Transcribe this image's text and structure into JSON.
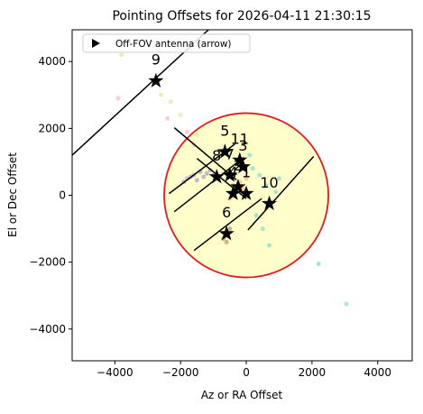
{
  "chart_data": {
    "type": "scatter",
    "title": "Pointing Offsets for 2026-04-11 21:30:15",
    "xlabel": "Az or RA Offset",
    "ylabel": "El or Dec Offset",
    "xlim": [
      -5300,
      5050
    ],
    "ylim": [
      -4950,
      4950
    ],
    "xticks": [
      {
        "value": -4000,
        "label": "−4000"
      },
      {
        "value": -2000,
        "label": "−2000"
      },
      0,
      2000,
      4000
    ],
    "yticks": [
      {
        "value": -4000,
        "label": "−4000"
      },
      {
        "value": -2000,
        "label": "−2000"
      },
      0,
      2000,
      4000
    ],
    "legend": {
      "label": "Off-FOV antenna (arrow)",
      "loc": "upper left"
    },
    "circle": {
      "x": 0,
      "y": 0,
      "r": 2500,
      "edgecolor": "#e41a1c",
      "facecolor": "#ffffcc"
    },
    "series": [
      {
        "color": "#9b7fc4",
        "x": [
          -1800,
          -1600,
          -1400,
          -1300,
          -1200,
          -1500,
          -1700,
          -1100,
          -1000,
          -1900
        ],
        "y": [
          500,
          600,
          700,
          550,
          650,
          450,
          550,
          750,
          600,
          400
        ]
      },
      {
        "color": "#5fd3c3",
        "x": [
          200,
          400,
          600,
          800,
          300,
          500,
          900,
          100,
          700,
          1000,
          2200,
          3050
        ],
        "y": [
          800,
          600,
          300,
          -200,
          -600,
          -1000,
          100,
          1200,
          -1500,
          500,
          -2050,
          -3250
        ]
      },
      {
        "color": "#f4a460",
        "x": [
          -400,
          -300,
          -200,
          -100,
          -500,
          0
        ],
        "y": [
          300,
          100,
          400,
          200,
          -100,
          500
        ]
      },
      {
        "color": "#dfe08a",
        "x": [
          -3800,
          -3200,
          -2300,
          -2600,
          -1500,
          -2000
        ],
        "y": [
          4200,
          4500,
          2800,
          3000,
          1800,
          2400
        ]
      },
      {
        "color": "#f2a6b8",
        "x": [
          -3900,
          -2400,
          -1800,
          -1600
        ],
        "y": [
          2900,
          2300,
          1900,
          1500
        ]
      },
      {
        "color": "#a0785a",
        "x": [
          -700,
          -500,
          -600
        ],
        "y": [
          -1300,
          -1000,
          -1400
        ]
      }
    ],
    "segments": [
      {
        "x": [
          -5300,
          -1150
        ],
        "y": [
          1200,
          4950
        ]
      },
      {
        "x": [
          -2190,
          -300
        ],
        "y": [
          2020,
          460
        ]
      },
      {
        "x": [
          -1500,
          0
        ],
        "y": [
          1100,
          -100
        ]
      },
      {
        "x": [
          -2350,
          -350
        ],
        "y": [
          50,
          1530
        ]
      },
      {
        "x": [
          -2190,
          -80
        ],
        "y": [
          -490,
          1130
        ]
      },
      {
        "x": [
          -1590,
          470
        ],
        "y": [
          -1650,
          -100
        ]
      },
      {
        "x": [
          50,
          2050
        ],
        "y": [
          -1040,
          1160
        ]
      }
    ],
    "markers": {
      "x": [
        -2750,
        -650,
        -200,
        -100,
        -900,
        -500,
        -250,
        -400,
        0,
        700,
        -600
      ],
      "y": [
        3420,
        1300,
        1050,
        850,
        550,
        600,
        250,
        50,
        50,
        -250,
        -1150
      ],
      "labels": [
        "9",
        "5",
        "11",
        "3",
        "8",
        "7",
        "2",
        "4",
        "1",
        "10",
        "6"
      ]
    }
  }
}
